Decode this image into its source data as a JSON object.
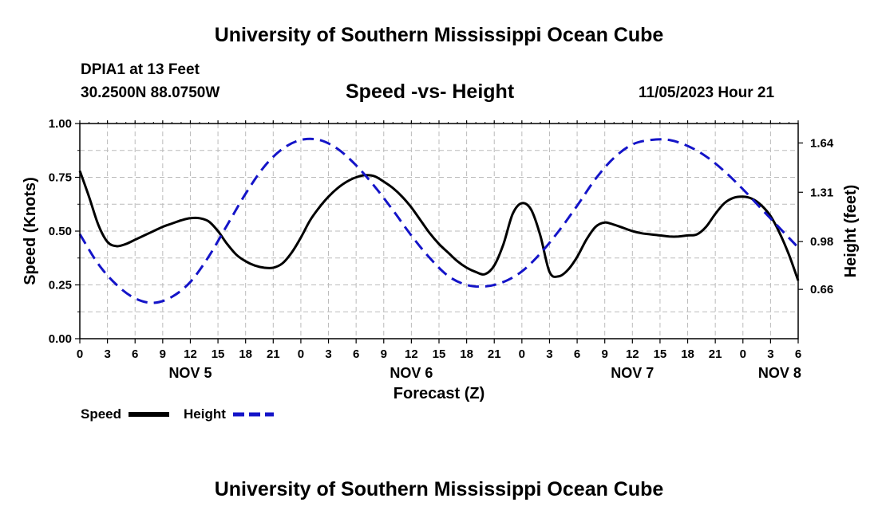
{
  "header": {
    "title": "University of Southern Mississippi Ocean Cube",
    "station": "DPIA1 at 13 Feet",
    "location": "30.2500N  88.0750W",
    "datetime": "11/05/2023 Hour 21"
  },
  "footer": {
    "title": "University of Southern Mississippi Ocean Cube"
  },
  "colors": {
    "speed": "#000000",
    "height": "#1414c8",
    "grid": "#bbbbbb"
  },
  "chart_data": {
    "type": "line",
    "title": "Speed -vs- Height",
    "xlabel": "Forecast (Z)",
    "ylabel_left": "Speed (Knots)",
    "ylabel_right": "Height (feet)",
    "x_unit": "hours from Nov 5 00Z",
    "xlim": [
      0,
      78
    ],
    "x_ticks": [
      0,
      3,
      6,
      9,
      12,
      15,
      18,
      21,
      24,
      27,
      30,
      33,
      36,
      39,
      42,
      45,
      48,
      51,
      54,
      57,
      60,
      63,
      66,
      69,
      72,
      75,
      78
    ],
    "x_tick_labels": [
      "0",
      "3",
      "6",
      "9",
      "12",
      "15",
      "18",
      "21",
      "0",
      "3",
      "6",
      "9",
      "12",
      "15",
      "18",
      "21",
      "0",
      "3",
      "6",
      "9",
      "12",
      "15",
      "18",
      "21",
      "0",
      "3",
      "6"
    ],
    "date_labels": [
      {
        "x": 12,
        "label": "NOV 5"
      },
      {
        "x": 36,
        "label": "NOV 6"
      },
      {
        "x": 60,
        "label": "NOV 7"
      },
      {
        "x": 76,
        "label": "NOV 8"
      }
    ],
    "ylim_left": [
      0,
      1.0
    ],
    "yticks_left": [
      "0.00",
      "0.25",
      "0.50",
      "0.75",
      "1.00"
    ],
    "ylim_right": [
      0.33,
      1.77
    ],
    "yticks_right": [
      "0.66",
      "0.98",
      "1.31",
      "1.64"
    ],
    "grid": true,
    "series": [
      {
        "name": "Speed",
        "axis": "left",
        "style": "solid",
        "x": [
          0,
          1,
          2,
          3,
          4,
          5,
          6,
          7,
          8,
          9,
          10,
          11,
          12,
          13,
          14,
          15,
          16,
          17,
          18,
          19,
          20,
          21,
          22,
          23,
          24,
          25,
          26,
          27,
          28,
          29,
          30,
          31,
          32,
          33,
          34,
          35,
          36,
          37,
          38,
          39,
          40,
          41,
          42,
          43,
          44,
          45,
          46,
          47,
          48,
          49,
          50,
          51,
          52,
          53,
          54,
          55,
          56,
          57,
          58,
          59,
          60,
          61,
          62,
          63,
          64,
          65,
          66,
          67,
          68,
          69,
          70,
          71,
          72,
          73,
          74,
          75,
          76,
          77,
          78
        ],
        "values": [
          0.78,
          0.66,
          0.53,
          0.45,
          0.43,
          0.44,
          0.46,
          0.48,
          0.5,
          0.52,
          0.535,
          0.55,
          0.56,
          0.56,
          0.545,
          0.5,
          0.44,
          0.39,
          0.36,
          0.34,
          0.33,
          0.33,
          0.35,
          0.4,
          0.47,
          0.55,
          0.61,
          0.66,
          0.7,
          0.73,
          0.75,
          0.76,
          0.755,
          0.73,
          0.7,
          0.66,
          0.61,
          0.55,
          0.49,
          0.44,
          0.4,
          0.36,
          0.33,
          0.31,
          0.3,
          0.34,
          0.44,
          0.58,
          0.63,
          0.6,
          0.48,
          0.31,
          0.29,
          0.32,
          0.38,
          0.46,
          0.52,
          0.54,
          0.53,
          0.515,
          0.5,
          0.49,
          0.485,
          0.48,
          0.475,
          0.475,
          0.48,
          0.485,
          0.52,
          0.58,
          0.63,
          0.655,
          0.66,
          0.65,
          0.62,
          0.57,
          0.49,
          0.39,
          0.27
        ]
      },
      {
        "name": "Height",
        "axis": "right",
        "style": "dashed",
        "x": [
          0,
          2,
          4,
          6,
          8,
          10,
          12,
          14,
          16,
          18,
          20,
          22,
          24,
          26,
          28,
          30,
          32,
          34,
          36,
          38,
          40,
          42,
          44,
          46,
          48,
          50,
          52,
          54,
          56,
          58,
          60,
          62,
          64,
          66,
          68,
          70,
          72,
          74,
          76,
          78
        ],
        "values": [
          1.03,
          0.83,
          0.69,
          0.6,
          0.57,
          0.61,
          0.71,
          0.88,
          1.09,
          1.3,
          1.48,
          1.6,
          1.66,
          1.66,
          1.6,
          1.49,
          1.35,
          1.19,
          1.02,
          0.87,
          0.75,
          0.69,
          0.68,
          0.71,
          0.78,
          0.9,
          1.05,
          1.22,
          1.4,
          1.54,
          1.63,
          1.66,
          1.66,
          1.62,
          1.55,
          1.45,
          1.33,
          1.2,
          1.07,
          0.94
        ]
      }
    ],
    "legend": [
      {
        "label": "Speed",
        "style": "solid"
      },
      {
        "label": "Height",
        "style": "dashed"
      }
    ],
    "legend_position": "bottom-left"
  }
}
